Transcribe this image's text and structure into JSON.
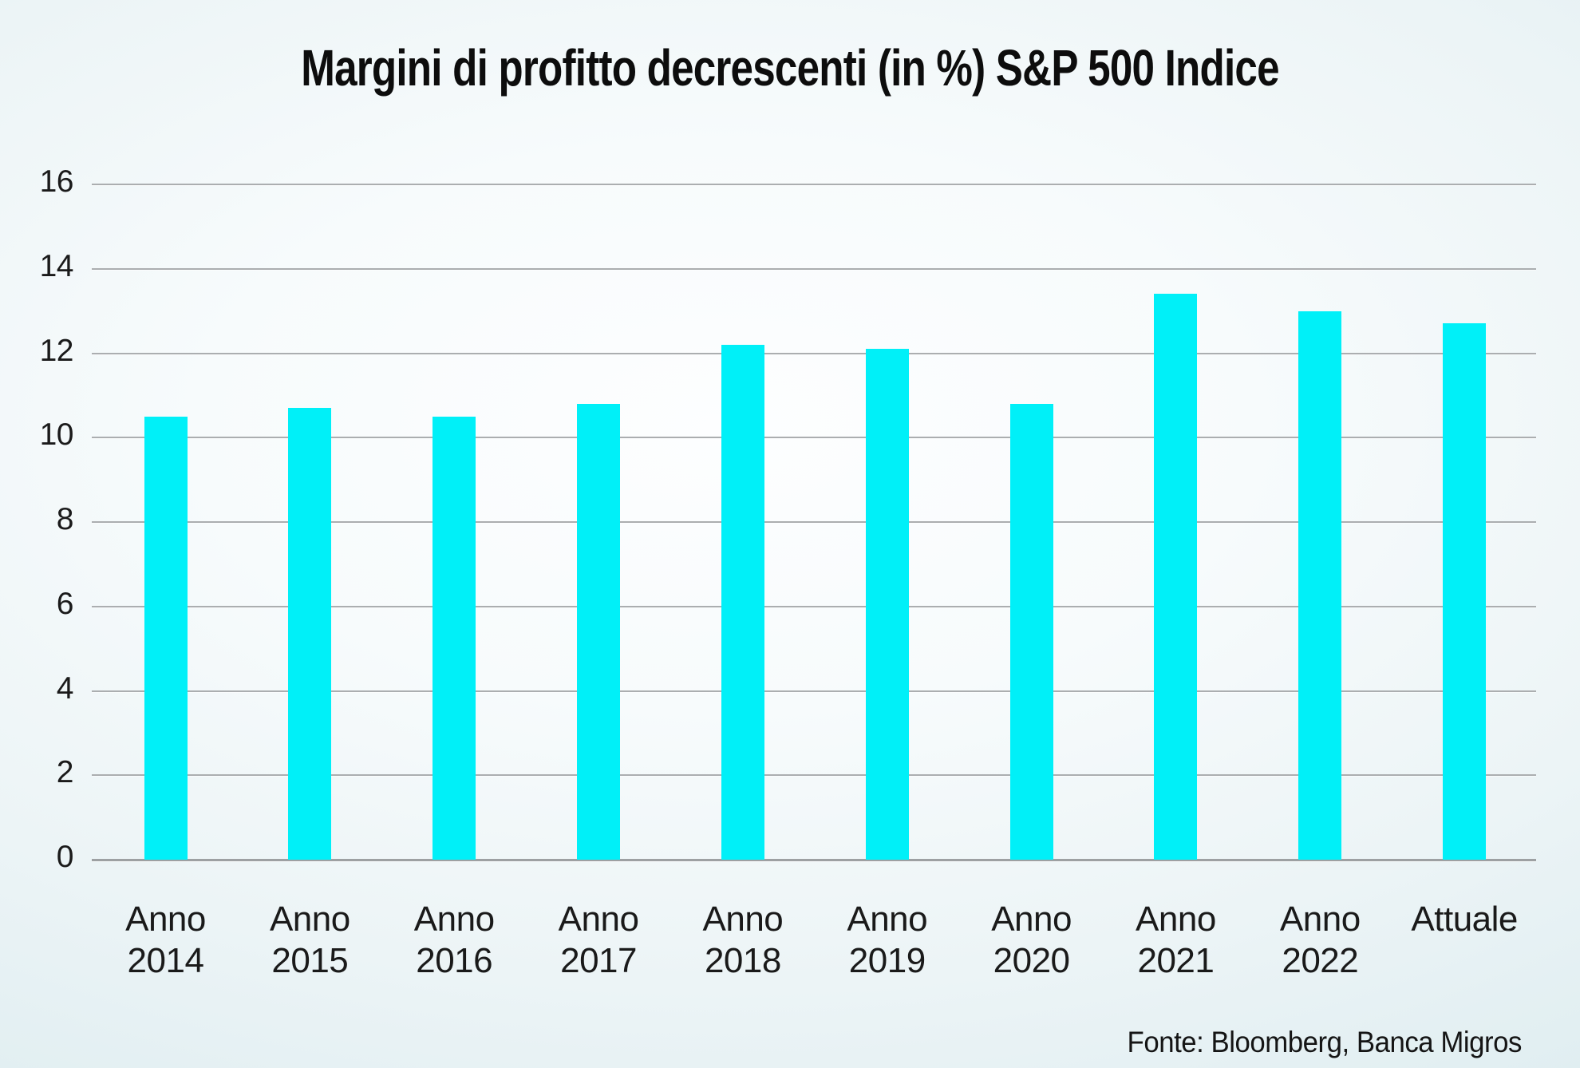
{
  "chart_data": {
    "type": "bar",
    "title": "Margini di profitto decrescenti (in %) S&P 500 Indice",
    "source": "Fonte: Bloomberg, Banca Migros",
    "categories": [
      "Anno 2014",
      "Anno 2015",
      "Anno 2016",
      "Anno 2017",
      "Anno 2018",
      "Anno 2019",
      "Anno 2020",
      "Anno 2021",
      "Anno 2022",
      "Attuale"
    ],
    "category_lines": [
      [
        "Anno",
        "2014"
      ],
      [
        "Anno",
        "2015"
      ],
      [
        "Anno",
        "2016"
      ],
      [
        "Anno",
        "2017"
      ],
      [
        "Anno",
        "2018"
      ],
      [
        "Anno",
        "2019"
      ],
      [
        "Anno",
        "2020"
      ],
      [
        "Anno",
        "2021"
      ],
      [
        "Anno",
        "2022"
      ],
      [
        "Attuale"
      ]
    ],
    "values": [
      10.5,
      10.7,
      10.5,
      10.8,
      12.2,
      12.1,
      10.8,
      13.4,
      13.0,
      12.7
    ],
    "ylabel": "",
    "xlabel": "",
    "ylim": [
      0,
      16
    ],
    "yticks": [
      0,
      2,
      4,
      6,
      8,
      10,
      12,
      14,
      16
    ],
    "grid": true,
    "legend_position": "none"
  },
  "colors": {
    "bar": "#00F0F8",
    "gridline": "#abaeb0",
    "axis_line": "#9da0a2",
    "background_edge": "#d9ebef",
    "background_center": "#fdfeff",
    "text": "#1a1a1a"
  }
}
